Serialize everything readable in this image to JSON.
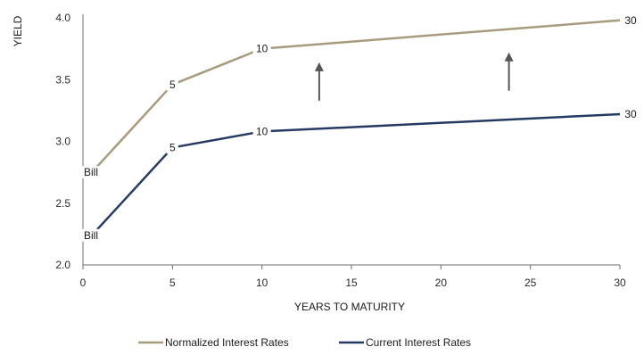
{
  "chart_data": {
    "type": "line",
    "xlabel": "YEARS TO MATURITY",
    "ylabel": "YIELD",
    "xlim": [
      0,
      30
    ],
    "ylim": [
      2.0,
      4.0
    ],
    "x_ticks": [
      "0",
      "5",
      "10",
      "15",
      "20",
      "25",
      "30"
    ],
    "y_ticks": [
      "2.0",
      "2.5",
      "3.0",
      "3.5",
      "4.0"
    ],
    "grid": false,
    "legend_position": "bottom",
    "series": [
      {
        "name": "Normalized Interest Rates",
        "color": "#a89a7c",
        "points": [
          {
            "x": 0.5,
            "y": 2.75,
            "label": "Bill"
          },
          {
            "x": 5,
            "y": 3.46,
            "label": "5"
          },
          {
            "x": 10,
            "y": 3.75,
            "label": "10"
          },
          {
            "x": 30,
            "y": 3.98,
            "label": "30"
          }
        ]
      },
      {
        "name": "Current Interest Rates",
        "color": "#253a63",
        "points": [
          {
            "x": 0.5,
            "y": 2.24,
            "label": "Bill"
          },
          {
            "x": 5,
            "y": 2.95,
            "label": "5"
          },
          {
            "x": 10,
            "y": 3.08,
            "label": "10"
          },
          {
            "x": 30,
            "y": 3.22,
            "label": "30"
          }
        ]
      }
    ],
    "annotations": [
      {
        "type": "arrow-up",
        "x": 13.2,
        "y_from": 3.33,
        "y_to": 3.64
      },
      {
        "type": "arrow-up",
        "x": 23.8,
        "y_from": 3.41,
        "y_to": 3.72
      }
    ],
    "arrow_color": "#555555"
  }
}
